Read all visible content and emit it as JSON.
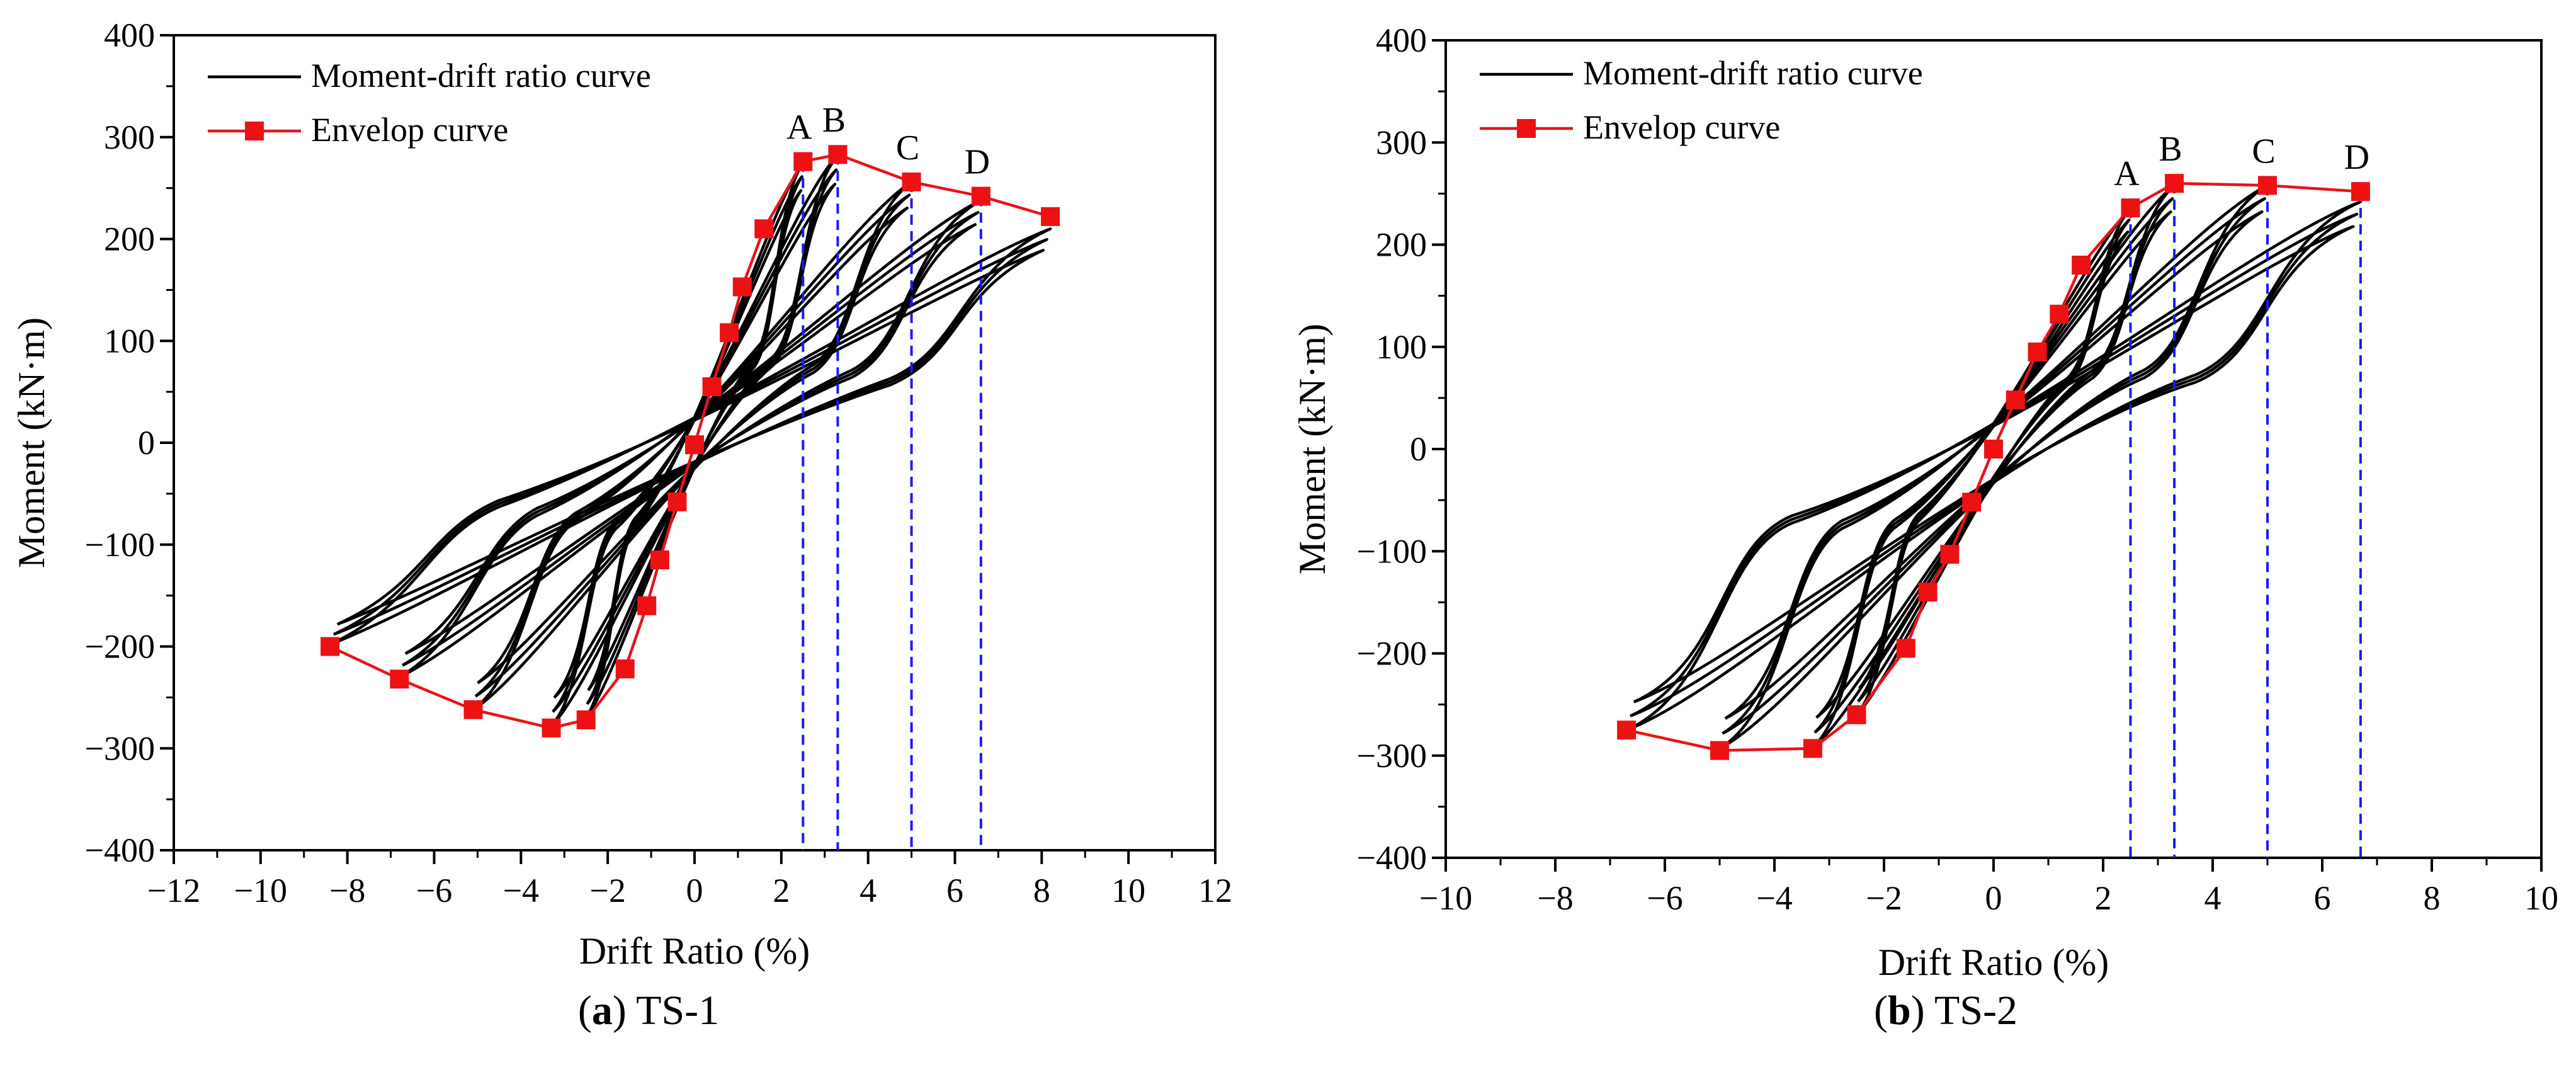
{
  "chart_data": [
    {
      "type": "line",
      "caption_letter": "a",
      "caption_name": "TS-1",
      "xlabel": "Drift Ratio (%)",
      "ylabel": "Moment (kN·m)",
      "xlim": [
        -12,
        12
      ],
      "ylim": [
        -400,
        400
      ],
      "xticks": [
        -12,
        -10,
        -8,
        -6,
        -4,
        -2,
        0,
        2,
        4,
        6,
        8,
        10,
        12
      ],
      "yticks": [
        -400,
        -300,
        -200,
        -100,
        0,
        100,
        200,
        300,
        400
      ],
      "legend": {
        "position": "top-left",
        "entries": [
          "Moment-drift ratio curve",
          "Envelop curve"
        ]
      },
      "colors": {
        "hysteresis": "#000000",
        "envelope": "#e8131b",
        "marker": "#ee1111",
        "reference": "#1a1aff"
      },
      "series": [
        {
          "name": "Envelop curve",
          "x": [
            -8.4,
            -6.8,
            -5.1,
            -3.3,
            -2.5,
            -1.6,
            -1.1,
            -0.8,
            -0.4,
            0,
            0.4,
            0.8,
            1.1,
            1.6,
            2.5,
            3.3,
            5.0,
            6.6,
            8.2
          ],
          "y": [
            -200,
            -232,
            -262,
            -280,
            -272,
            -222,
            -160,
            -115,
            -58,
            -2,
            55,
            108,
            153,
            210,
            276,
            283,
            256,
            242,
            222
          ]
        }
      ],
      "hysteresis_loops": [
        {
          "peak": [
            2.5,
            275
          ],
          "trough": [
            -2.5,
            -270
          ]
        },
        {
          "peak": [
            3.3,
            282
          ],
          "trough": [
            -3.3,
            -278
          ]
        },
        {
          "peak": [
            5.0,
            256
          ],
          "trough": [
            -5.1,
            -262
          ]
        },
        {
          "peak": [
            6.6,
            238
          ],
          "trough": [
            -6.8,
            -230
          ]
        },
        {
          "peak": [
            8.2,
            210
          ],
          "trough": [
            -8.4,
            -198
          ]
        }
      ],
      "reference_lines": [
        {
          "label": "A",
          "x": 2.5,
          "y": 276
        },
        {
          "label": "B",
          "x": 3.3,
          "y": 283
        },
        {
          "label": "C",
          "x": 5.0,
          "y": 256
        },
        {
          "label": "D",
          "x": 6.6,
          "y": 242
        }
      ]
    },
    {
      "type": "line",
      "caption_letter": "b",
      "caption_name": "TS-2",
      "xlabel": "Drift Ratio (%)",
      "ylabel": "Moment (kN·m)",
      "xlim": [
        -10,
        10
      ],
      "ylim": [
        -400,
        400
      ],
      "xticks": [
        -10,
        -8,
        -6,
        -4,
        -2,
        0,
        2,
        4,
        6,
        8,
        10
      ],
      "yticks": [
        -400,
        -300,
        -200,
        -100,
        0,
        100,
        200,
        300,
        400
      ],
      "legend": {
        "position": "top-left",
        "entries": [
          "Moment-drift ratio curve",
          "Envelop curve"
        ]
      },
      "colors": {
        "hysteresis": "#000000",
        "envelope": "#e8131b",
        "marker": "#ee1111",
        "reference": "#1a1aff"
      },
      "series": [
        {
          "name": "Envelop curve",
          "x": [
            -6.7,
            -5.0,
            -3.3,
            -2.5,
            -1.6,
            -1.2,
            -0.8,
            -0.4,
            0,
            0.4,
            0.8,
            1.2,
            1.6,
            2.5,
            3.3,
            5.0,
            6.7
          ],
          "y": [
            -275,
            -295,
            -293,
            -260,
            -195,
            -140,
            -103,
            -52,
            0,
            48,
            95,
            132,
            180,
            236,
            260,
            258,
            252
          ]
        }
      ],
      "hysteresis_loops": [
        {
          "peak": [
            2.5,
            236
          ],
          "trough": [
            -2.5,
            -260
          ]
        },
        {
          "peak": [
            3.3,
            258
          ],
          "trough": [
            -3.3,
            -292
          ]
        },
        {
          "peak": [
            5.0,
            258
          ],
          "trough": [
            -5.0,
            -293
          ]
        },
        {
          "peak": [
            6.7,
            242
          ],
          "trough": [
            -6.7,
            -275
          ]
        }
      ],
      "reference_lines": [
        {
          "label": "A",
          "x": 2.5,
          "y": 236
        },
        {
          "label": "B",
          "x": 3.3,
          "y": 260
        },
        {
          "label": "C",
          "x": 5.0,
          "y": 258
        },
        {
          "label": "D",
          "x": 6.7,
          "y": 252
        }
      ]
    }
  ]
}
